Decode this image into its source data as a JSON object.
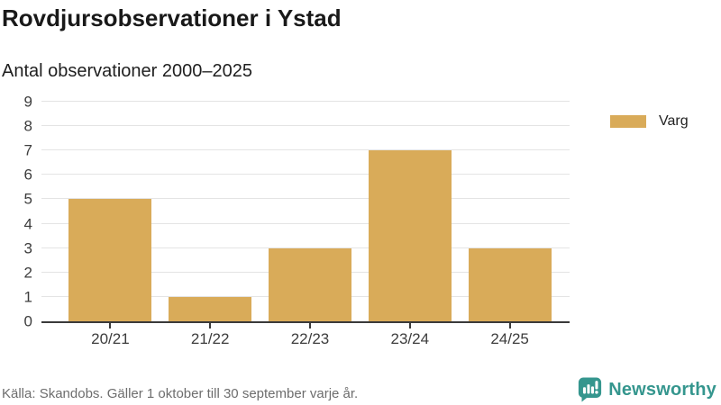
{
  "header": {
    "title": "Rovdjursobservationer i Ystad",
    "subtitle": "Antal observationer 2000–2025"
  },
  "chart_data": {
    "type": "bar",
    "title": "Rovdjursobservationer i Ystad",
    "subtitle": "Antal observationer 2000–2025",
    "categories": [
      "20/21",
      "21/22",
      "22/23",
      "23/24",
      "24/25"
    ],
    "series": [
      {
        "name": "Varg",
        "color": "#d9ab59",
        "values": [
          5,
          1,
          3,
          7,
          3
        ]
      }
    ],
    "xlabel": "",
    "ylabel": "",
    "ylim": [
      0,
      9
    ],
    "ytick_step": 1,
    "yticks": [
      0,
      1,
      2,
      3,
      4,
      5,
      6,
      7,
      8,
      9
    ],
    "grid": true,
    "legend_position": "right"
  },
  "legend": {
    "items": [
      {
        "label": "Varg",
        "color": "#d9ab59"
      }
    ]
  },
  "footer": {
    "source": "Källa: Skandobs. Gäller 1 oktober till 30 september varje år.",
    "brand": "Newsworthy"
  },
  "colors": {
    "bar": "#d9ab59",
    "axis": "#3a3a3a",
    "gridline": "#e4e4e4",
    "brand_teal": "#35968e",
    "title_text": "#191919",
    "muted_text": "#6d6d6d"
  }
}
